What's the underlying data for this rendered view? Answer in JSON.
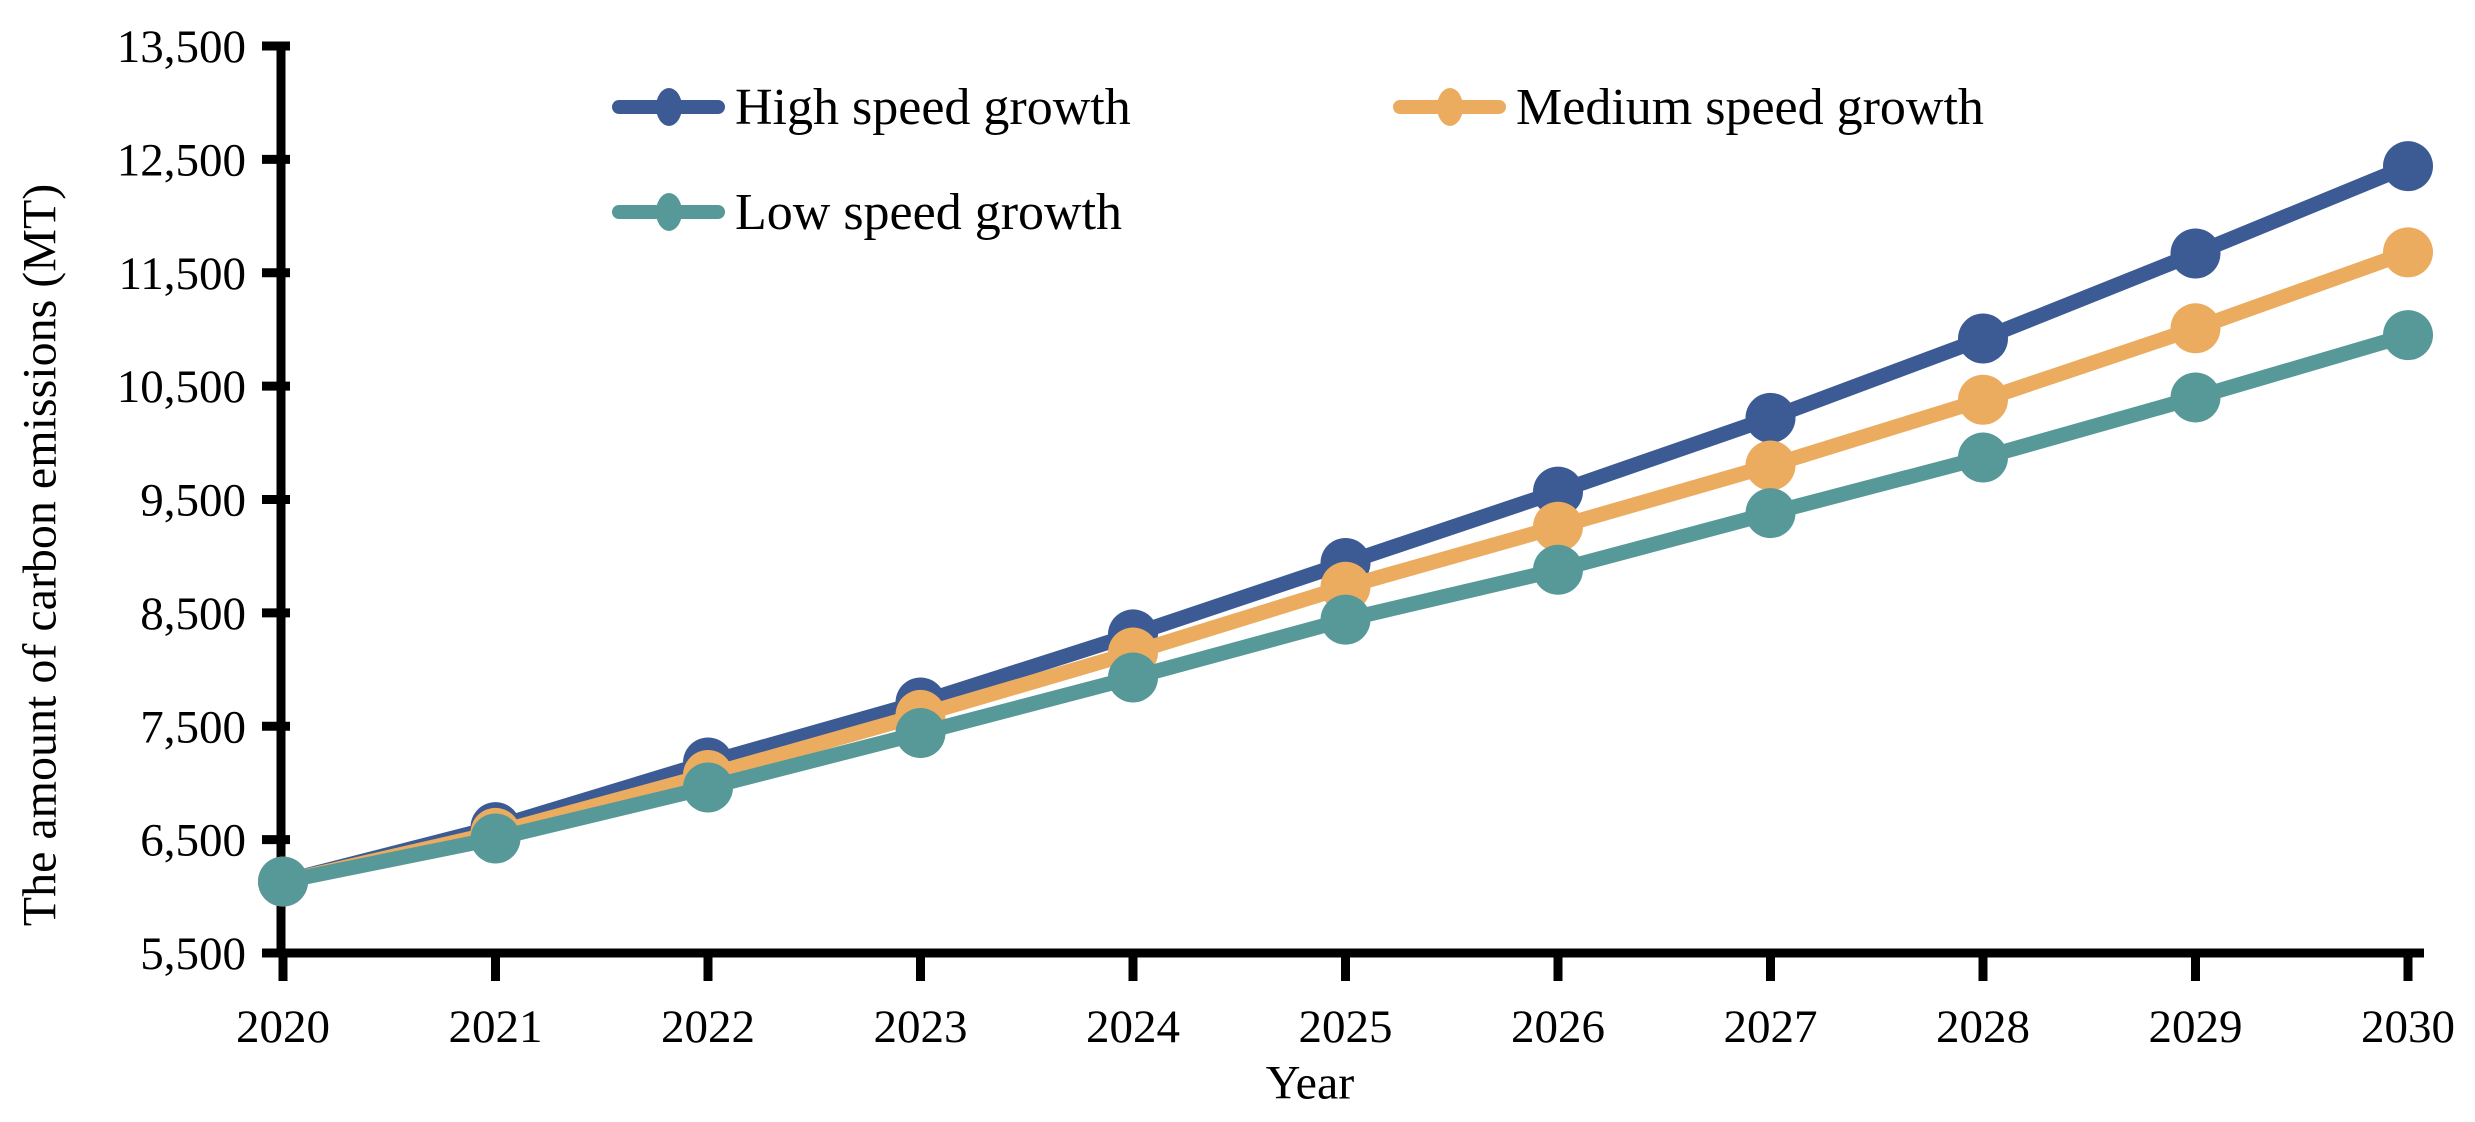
{
  "chart_data": {
    "type": "line",
    "title": "",
    "xlabel": "Year",
    "ylabel": "The amount of carbon emissions (MT)",
    "categories": [
      "2020",
      "2021",
      "2022",
      "2023",
      "2024",
      "2025",
      "2026",
      "2027",
      "2028",
      "2029",
      "2030"
    ],
    "series": [
      {
        "name": "High speed growth",
        "color": "#3C5A94",
        "values": [
          6130,
          6610,
          7180,
          7710,
          8310,
          8940,
          9570,
          10220,
          10920,
          11670,
          12440
        ]
      },
      {
        "name": "Medium speed growth",
        "color": "#ECAC60",
        "values": [
          6130,
          6560,
          7070,
          7600,
          8150,
          8730,
          9260,
          9800,
          10380,
          11010,
          11680
        ]
      },
      {
        "name": "Low speed growth",
        "color": "#579998",
        "values": [
          6130,
          6510,
          6960,
          7440,
          7930,
          8440,
          8880,
          9380,
          9870,
          10400,
          10950
        ]
      }
    ],
    "ylim": [
      5500,
      13500
    ],
    "ytick_step": 1000,
    "ytick_labels": [
      "5,500",
      "6,500",
      "7,500",
      "8,500",
      "9,500",
      "10,500",
      "11,500",
      "12,500",
      "13,500"
    ],
    "grid": false,
    "legend_position": "top-inside-two-rows",
    "marker": "circle",
    "axis_color": "#000000"
  }
}
